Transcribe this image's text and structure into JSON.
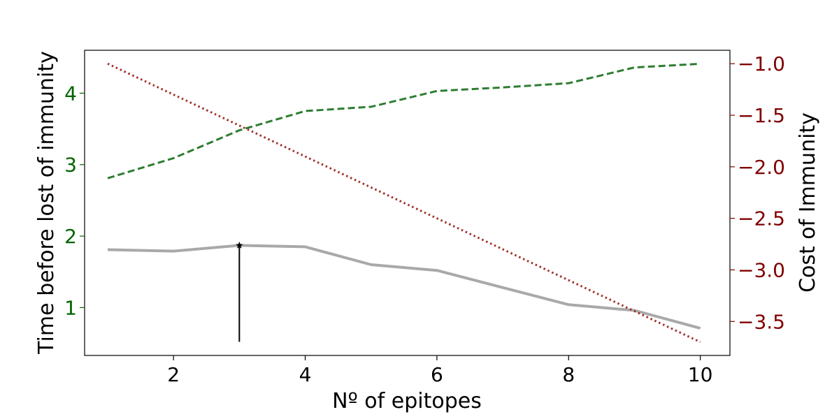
{
  "chart_data": {
    "type": "line",
    "xlabel": "Nº of epitopes",
    "ylabel_left": "Time before lost of immunity",
    "ylabel_right": "Cost of Immunity",
    "xlim": [
      0.65,
      10.45
    ],
    "ylim_left": [
      0.33,
      4.6
    ],
    "ylim_right": [
      -3.83,
      -0.87
    ],
    "x_ticks": [
      2,
      4,
      6,
      8,
      10
    ],
    "y_ticks_left": [
      1,
      2,
      3,
      4
    ],
    "y_ticks_right": [
      -1.0,
      -1.5,
      -2.0,
      -2.5,
      -3.0,
      -3.5
    ],
    "y_ticks_right_labels": [
      "−1.0",
      "−1.5",
      "−2.0",
      "−2.5",
      "−3.0",
      "−3.5"
    ],
    "left_axis_color": "#006400",
    "right_axis_color": "#800000",
    "grid": false,
    "series": [
      {
        "axis": "left",
        "style": "dashed",
        "color": "#2e7d32",
        "x": [
          1,
          2,
          3,
          4,
          5,
          6,
          7,
          8,
          9,
          10
        ],
        "values": [
          2.81,
          3.09,
          3.48,
          3.75,
          3.81,
          4.03,
          4.08,
          4.14,
          4.36,
          4.41
        ]
      },
      {
        "axis": "left",
        "style": "solid",
        "color": "#a9a9a9",
        "x": [
          1,
          2,
          3,
          4,
          5,
          6,
          7,
          8,
          9,
          10
        ],
        "values": [
          1.81,
          1.79,
          1.87,
          1.85,
          1.6,
          1.52,
          1.28,
          1.04,
          0.96,
          0.71
        ]
      },
      {
        "axis": "right",
        "style": "dotted",
        "color": "#a0302a",
        "x": [
          1,
          10
        ],
        "values": [
          -1.0,
          -3.7
        ]
      }
    ],
    "marker": {
      "x": 3,
      "y_top": 1.87,
      "y_bottom": 0.52,
      "symbol": "star",
      "color": "#000000"
    }
  }
}
